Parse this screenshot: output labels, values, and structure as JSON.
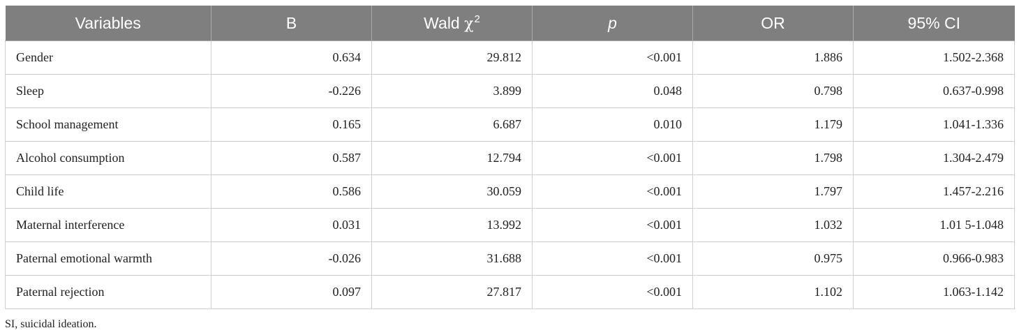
{
  "table": {
    "headers": {
      "variables": "Variables",
      "b": "B",
      "wald": "Wald",
      "wald_symbol": "χ",
      "wald_sup": "2",
      "p": "p",
      "or": "OR",
      "ci": "95% CI"
    },
    "rows": [
      {
        "variable": "Gender",
        "b": "0.634",
        "wald": "29.812",
        "p": "<0.001",
        "or": "1.886",
        "ci": "1.502-2.368"
      },
      {
        "variable": "Sleep",
        "b": "-0.226",
        "wald": "3.899",
        "p": "0.048",
        "or": "0.798",
        "ci": "0.637-0.998"
      },
      {
        "variable": "School management",
        "b": "0.165",
        "wald": "6.687",
        "p": "0.010",
        "or": "1.179",
        "ci": "1.041-1.336"
      },
      {
        "variable": "Alcohol consumption",
        "b": "0.587",
        "wald": "12.794",
        "p": "<0.001",
        "or": "1.798",
        "ci": "1.304-2.479"
      },
      {
        "variable": "Child life",
        "b": "0.586",
        "wald": "30.059",
        "p": "<0.001",
        "or": "1.797",
        "ci": "1.457-2.216"
      },
      {
        "variable": "Maternal interference",
        "b": "0.031",
        "wald": "13.992",
        "p": "<0.001",
        "or": "1.032",
        "ci": "1.01 5-1.048"
      },
      {
        "variable": "Paternal emotional warmth",
        "b": "-0.026",
        "wald": "31.688",
        "p": "<0.001",
        "or": "0.975",
        "ci": "0.966-0.983"
      },
      {
        "variable": "Paternal rejection",
        "b": "0.097",
        "wald": "27.817",
        "p": "<0.001",
        "or": "1.102",
        "ci": "1.063-1.142"
      }
    ]
  },
  "footnote": "SI, suicidal ideation.",
  "colors": {
    "header_bg": "#7f7f7f",
    "header_text": "#ffffff",
    "grid": "#cfcfcf",
    "body_text": "#222222"
  }
}
